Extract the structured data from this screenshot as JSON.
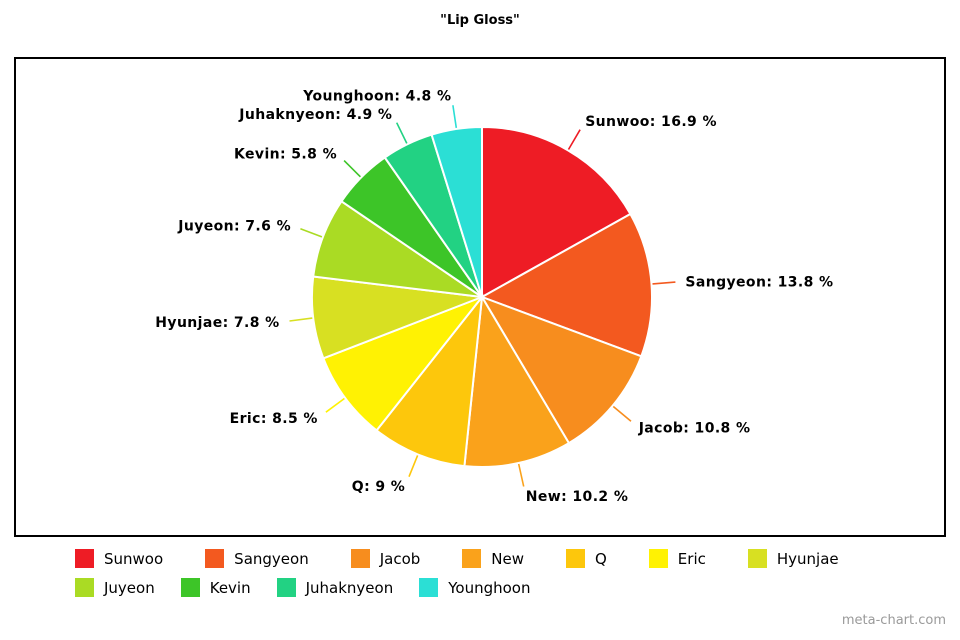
{
  "page_title": "\"Lip Gloss\"",
  "watermark": "meta-chart.com",
  "chart_data": {
    "type": "pie",
    "title": "\"Lip Gloss\"",
    "categories": [
      "Sunwoo",
      "Sangyeon",
      "Jacob",
      "New",
      "Q",
      "Eric",
      "Hyunjae",
      "Juyeon",
      "Kevin",
      "Juhaknyeon",
      "Younghoon"
    ],
    "values": [
      16.9,
      13.8,
      10.8,
      10.2,
      9,
      8.5,
      7.8,
      7.6,
      5.8,
      4.9,
      4.8
    ],
    "labels": [
      "Sunwoo: 16.9 %",
      "Sangyeon: 13.8 %",
      "Jacob: 10.8 %",
      "New: 10.2 %",
      "Q: 9 %",
      "Eric: 8.5 %",
      "Hyunjae: 7.8 %",
      "Juyeon: 7.6 %",
      "Kevin: 5.8 %",
      "Juhaknyeon: 4.9 %",
      "Younghoon: 4.8 %"
    ],
    "colors": [
      "#ee1c25",
      "#f3591f",
      "#f78d1e",
      "#faa21b",
      "#fdc70c",
      "#fff203",
      "#d8e022",
      "#aadb24",
      "#3dc528",
      "#22d283",
      "#2bdfd5"
    ],
    "start_angle_deg": 0,
    "direction": "clockwise",
    "slice_separator_color": "#ffffff",
    "legend_position": "bottom",
    "legend_rows": [
      [
        "Sunwoo",
        "Sangyeon",
        "Jacob",
        "New",
        "Q",
        "Eric",
        "Hyunjae"
      ],
      [
        "Juyeon",
        "Kevin",
        "Juhaknyeon",
        "Younghoon"
      ]
    ]
  }
}
